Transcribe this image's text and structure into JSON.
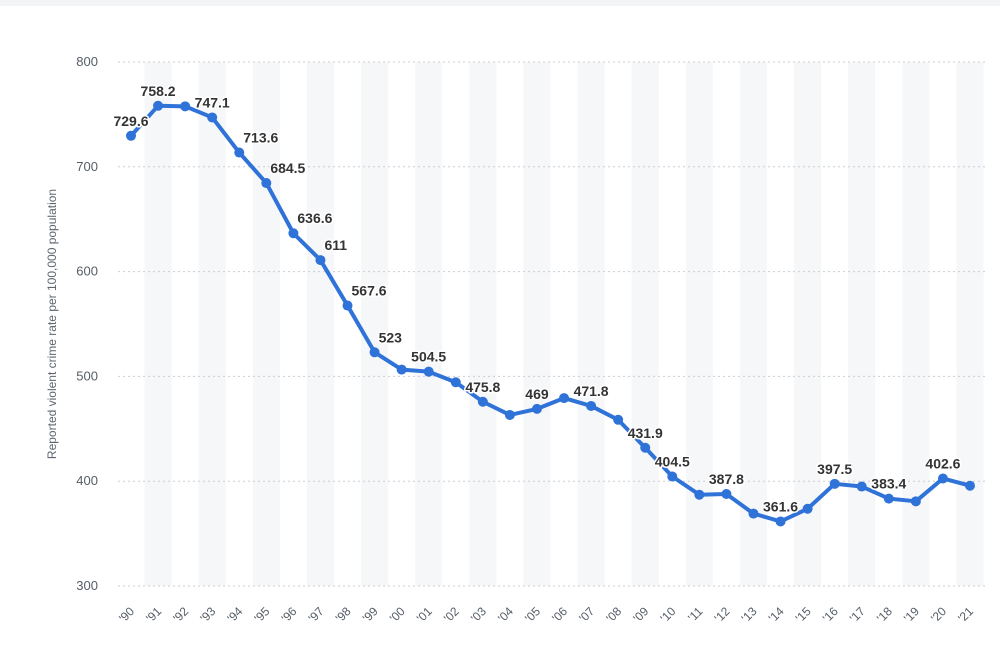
{
  "chart_data": {
    "type": "line",
    "title": "",
    "xlabel": "",
    "ylabel": "Reported violent crime rate per 100,000 population",
    "ylim": [
      300,
      800
    ],
    "yticks": [
      300,
      400,
      500,
      600,
      700,
      800
    ],
    "grid": true,
    "categories": [
      "'90",
      "'91",
      "'92",
      "'93",
      "'94",
      "'95",
      "'96",
      "'97",
      "'98",
      "'99",
      "'00",
      "'01",
      "'02",
      "'03",
      "'04",
      "'05",
      "'06",
      "'07",
      "'08",
      "'09",
      "'10",
      "'11",
      "'12",
      "'13",
      "'14",
      "'15",
      "'16",
      "'17",
      "'18",
      "'19",
      "'20",
      "'21"
    ],
    "series": [
      {
        "name": "Reported violent crime rate",
        "color": "#2f72d8",
        "values": [
          729.6,
          758.2,
          757.7,
          747.1,
          713.6,
          684.5,
          636.6,
          611,
          567.6,
          523,
          506.5,
          504.5,
          494.4,
          475.8,
          463.2,
          469,
          479.3,
          471.8,
          458.6,
          431.9,
          404.5,
          387.1,
          387.8,
          369.1,
          361.6,
          373.7,
          397.5,
          394.9,
          383.4,
          380.8,
          402.6,
          395.7
        ],
        "labels": [
          "729.6",
          "758.2",
          "",
          "747.1",
          "713.6",
          "684.5",
          "636.6",
          "611",
          "567.6",
          "523",
          "",
          "504.5",
          "",
          "475.8",
          "",
          "469",
          "",
          "471.8",
          "",
          "431.9",
          "404.5",
          "",
          "387.8",
          "",
          "361.6",
          "",
          "397.5",
          "",
          "383.4",
          "",
          "402.6",
          ""
        ]
      }
    ]
  }
}
